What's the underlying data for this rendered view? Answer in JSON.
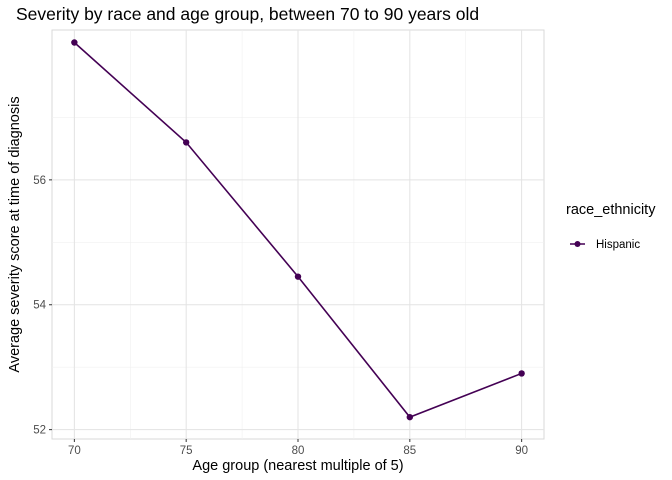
{
  "chart_data": {
    "type": "line",
    "title": "Severity by race and age group, between 70 to 90 years old",
    "xlabel": "Age group (nearest multiple of 5)",
    "ylabel": "Average severity score at time of diagnosis",
    "x": [
      70,
      75,
      80,
      85,
      90
    ],
    "xticks": [
      "70",
      "75",
      "80",
      "85",
      "90"
    ],
    "yticks": [
      "52",
      "54",
      "56"
    ],
    "xlim": [
      69,
      91
    ],
    "ylim": [
      51.85,
      58.4
    ],
    "grid": true,
    "legend": {
      "title": "race_ethnicity",
      "position": "right"
    },
    "series": [
      {
        "name": "Hispanic",
        "color": "#440154",
        "values": [
          58.2,
          56.6,
          54.45,
          52.2,
          52.9
        ]
      }
    ]
  }
}
